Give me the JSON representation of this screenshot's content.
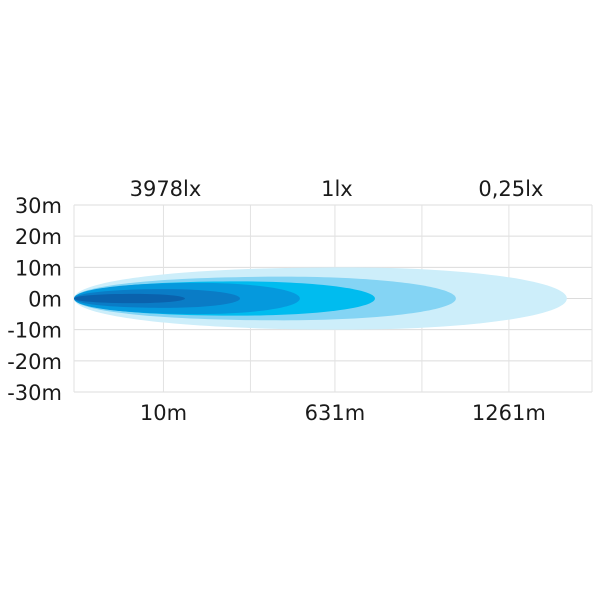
{
  "chart_data": {
    "type": "area",
    "title": "",
    "xlabel": "",
    "ylabel": "",
    "xlim": [
      -314,
      1562
    ],
    "ylim": [
      -30,
      30
    ],
    "grid": true,
    "y_ticks": [
      {
        "value": 30,
        "label": "30m"
      },
      {
        "value": 20,
        "label": "20m"
      },
      {
        "value": 10,
        "label": "10m"
      },
      {
        "value": 0,
        "label": "0m"
      },
      {
        "value": -10,
        "label": "-10m"
      },
      {
        "value": -20,
        "label": "-20m"
      },
      {
        "value": -30,
        "label": "-30m"
      }
    ],
    "x_ticks": [
      {
        "value": 10,
        "label": "10m"
      },
      {
        "value": 631,
        "label": "631m"
      },
      {
        "value": 1261,
        "label": "1261m"
      }
    ],
    "x_gridlines": [
      10,
      325,
      631,
      946,
      1261
    ],
    "lux_labels": [
      {
        "value": 10,
        "label": "3978lx"
      },
      {
        "value": 631,
        "label": "1lx"
      },
      {
        "value": 1261,
        "label": "0,25lx"
      }
    ],
    "beam_origin": -314,
    "lobes": [
      {
        "reach": 1471,
        "half_width": 10,
        "color": "#cdeefa"
      },
      {
        "reach": 1069,
        "half_width": 7,
        "color": "#84d4f4"
      },
      {
        "reach": 776,
        "half_width": 5.5,
        "color": "#00bcef"
      },
      {
        "reach": 504,
        "half_width": 5,
        "color": "#0599dd"
      },
      {
        "reach": 287,
        "half_width": 3,
        "color": "#0a7cc6"
      },
      {
        "reach": 88,
        "half_width": 1.5,
        "color": "#0a62ad"
      }
    ]
  }
}
